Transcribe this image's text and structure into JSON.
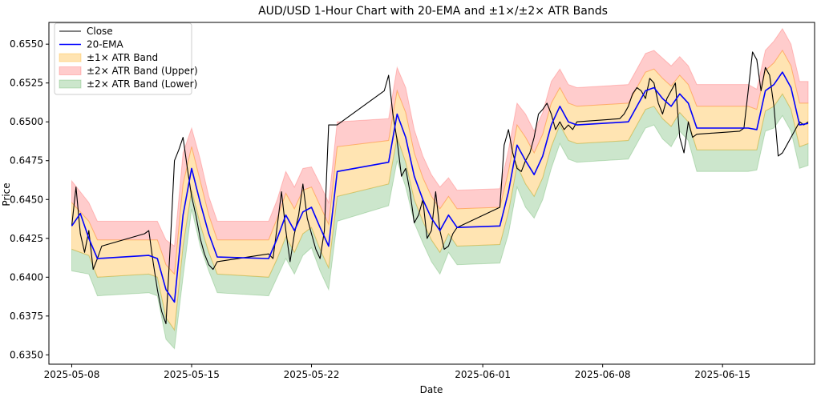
{
  "chart_data": {
    "type": "line",
    "title": "AUD/USD 1-Hour Chart with 20-EMA and ±1×/±2× ATR Bands",
    "xlabel": "Date",
    "ylabel": "Price",
    "x_ticks": [
      "2025-05-08",
      "2025-05-15",
      "2025-05-22",
      "2025-06-01",
      "2025-06-08",
      "2025-06-15"
    ],
    "y_ticks": [
      "0.6350",
      "0.6375",
      "0.6400",
      "0.6425",
      "0.6450",
      "0.6475",
      "0.6500",
      "0.6525",
      "0.6550"
    ],
    "xlim": [
      "2025-05-06T16:00",
      "2025-06-20T09:00"
    ],
    "ylim": [
      0.6344,
      0.6564
    ],
    "legend_placement": "upper-left",
    "grid": false,
    "legend": [
      {
        "label": "Close",
        "kind": "line",
        "color": "#000000"
      },
      {
        "label": "20-EMA",
        "kind": "line",
        "color": "#0000ff"
      },
      {
        "label": "±1× ATR Band",
        "kind": "patch",
        "color": "#ffa500"
      },
      {
        "label": "±2× ATR Band (Upper)",
        "kind": "patch",
        "color": "#ff0000"
      },
      {
        "label": "±2× ATR Band (Lower)",
        "kind": "patch",
        "color": "#008000"
      }
    ],
    "series": [
      {
        "name": "Close",
        "x": [
          "2025-05-08T00:00",
          "2025-05-08T06:00",
          "2025-05-08T12:00",
          "2025-05-08T18:00",
          "2025-05-09T00:00",
          "2025-05-09T06:00",
          "2025-05-09T12:00",
          "2025-05-09T18:00",
          "2025-05-12T06:00",
          "2025-05-12T12:00",
          "2025-05-12T18:00",
          "2025-05-13T00:00",
          "2025-05-13T06:00",
          "2025-05-13T12:00",
          "2025-05-13T18:00",
          "2025-05-14T00:00",
          "2025-05-14T06:00",
          "2025-05-14T12:00",
          "2025-05-14T18:00",
          "2025-05-15T00:00",
          "2025-05-15T06:00",
          "2025-05-15T12:00",
          "2025-05-15T18:00",
          "2025-05-16T00:00",
          "2025-05-16T06:00",
          "2025-05-16T12:00",
          "2025-05-19T12:00",
          "2025-05-19T18:00",
          "2025-05-20T00:00",
          "2025-05-20T06:00",
          "2025-05-20T12:00",
          "2025-05-20T18:00",
          "2025-05-21T00:00",
          "2025-05-21T06:00",
          "2025-05-21T12:00",
          "2025-05-21T18:00",
          "2025-05-22T00:00",
          "2025-05-22T06:00",
          "2025-05-22T12:00",
          "2025-05-22T18:00",
          "2025-05-23T00:00",
          "2025-05-23T06:00",
          "2025-05-23T12:00",
          "2025-05-23T18:00",
          "2025-05-26T06:00",
          "2025-05-26T12:00",
          "2025-05-26T18:00",
          "2025-05-27T00:00",
          "2025-05-27T06:00",
          "2025-05-27T12:00",
          "2025-05-27T18:00",
          "2025-05-28T00:00",
          "2025-05-28T06:00",
          "2025-05-28T12:00",
          "2025-05-28T18:00",
          "2025-05-29T00:00",
          "2025-05-29T06:00",
          "2025-05-29T12:00",
          "2025-05-29T18:00",
          "2025-05-30T00:00",
          "2025-05-30T06:00",
          "2025-05-30T12:00",
          "2025-06-02T00:00",
          "2025-06-02T06:00",
          "2025-06-02T12:00",
          "2025-06-02T18:00",
          "2025-06-03T00:00",
          "2025-06-03T06:00",
          "2025-06-03T12:00",
          "2025-06-03T18:00",
          "2025-06-04T00:00",
          "2025-06-04T06:00",
          "2025-06-04T12:00",
          "2025-06-04T18:00",
          "2025-06-05T00:00",
          "2025-06-05T06:00",
          "2025-06-05T12:00",
          "2025-06-05T18:00",
          "2025-06-06T00:00",
          "2025-06-06T06:00",
          "2025-06-06T12:00",
          "2025-06-09T00:00",
          "2025-06-09T06:00",
          "2025-06-09T12:00",
          "2025-06-09T18:00",
          "2025-06-10T00:00",
          "2025-06-10T06:00",
          "2025-06-10T12:00",
          "2025-06-10T18:00",
          "2025-06-11T00:00",
          "2025-06-11T06:00",
          "2025-06-11T12:00",
          "2025-06-11T18:00",
          "2025-06-12T00:00",
          "2025-06-12T06:00",
          "2025-06-12T12:00",
          "2025-06-12T18:00",
          "2025-06-13T00:00",
          "2025-06-13T06:00",
          "2025-06-13T12:00",
          "2025-06-16T00:00",
          "2025-06-16T06:00",
          "2025-06-16T12:00",
          "2025-06-16T18:00",
          "2025-06-17T00:00",
          "2025-06-17T06:00",
          "2025-06-17T12:00",
          "2025-06-17T18:00",
          "2025-06-18T00:00",
          "2025-06-18T06:00",
          "2025-06-18T12:00",
          "2025-06-18T18:00",
          "2025-06-19T00:00",
          "2025-06-19T06:00",
          "2025-06-19T12:00",
          "2025-06-19T18:00",
          "2025-06-20T00:00"
        ],
        "values": [
          0.6433,
          0.6458,
          0.6428,
          0.6416,
          0.643,
          0.6405,
          0.6412,
          0.642,
          0.6428,
          0.643,
          0.641,
          0.6392,
          0.6378,
          0.637,
          0.642,
          0.6475,
          0.6482,
          0.649,
          0.647,
          0.6452,
          0.644,
          0.6425,
          0.6415,
          0.6408,
          0.6405,
          0.641,
          0.6415,
          0.6412,
          0.6433,
          0.6455,
          0.643,
          0.641,
          0.6428,
          0.644,
          0.646,
          0.6438,
          0.6428,
          0.6418,
          0.6412,
          0.643,
          0.6498,
          0.6498,
          0.6498,
          0.65,
          0.652,
          0.653,
          0.6505,
          0.6488,
          0.6465,
          0.647,
          0.6455,
          0.6435,
          0.644,
          0.645,
          0.6425,
          0.643,
          0.6455,
          0.643,
          0.6418,
          0.642,
          0.6428,
          0.6432,
          0.6445,
          0.6485,
          0.6495,
          0.648,
          0.647,
          0.6468,
          0.6475,
          0.648,
          0.649,
          0.6505,
          0.6508,
          0.6512,
          0.6505,
          0.6495,
          0.65,
          0.6495,
          0.6498,
          0.6495,
          0.65,
          0.6502,
          0.6505,
          0.651,
          0.6518,
          0.6522,
          0.652,
          0.6515,
          0.6528,
          0.6525,
          0.6512,
          0.6505,
          0.6515,
          0.652,
          0.6525,
          0.649,
          0.648,
          0.65,
          0.649,
          0.6492,
          0.6494,
          0.6496,
          0.652,
          0.6545,
          0.654,
          0.652,
          0.6535,
          0.653,
          0.651,
          0.6478,
          0.648,
          0.6485,
          0.649,
          0.6495,
          0.65,
          0.6498,
          0.65
        ]
      },
      {
        "name": "20-EMA",
        "x": [
          "2025-05-08T00:00",
          "2025-05-08T12:00",
          "2025-05-09T00:00",
          "2025-05-09T12:00",
          "2025-05-12T12:00",
          "2025-05-13T00:00",
          "2025-05-13T12:00",
          "2025-05-14T00:00",
          "2025-05-14T12:00",
          "2025-05-15T00:00",
          "2025-05-15T12:00",
          "2025-05-16T00:00",
          "2025-05-16T12:00",
          "2025-05-19T12:00",
          "2025-05-20T00:00",
          "2025-05-20T12:00",
          "2025-05-21T00:00",
          "2025-05-21T12:00",
          "2025-05-22T00:00",
          "2025-05-22T12:00",
          "2025-05-23T00:00",
          "2025-05-23T12:00",
          "2025-05-26T12:00",
          "2025-05-27T00:00",
          "2025-05-27T12:00",
          "2025-05-28T00:00",
          "2025-05-28T12:00",
          "2025-05-29T00:00",
          "2025-05-29T12:00",
          "2025-05-30T00:00",
          "2025-05-30T12:00",
          "2025-06-02T00:00",
          "2025-06-02T12:00",
          "2025-06-03T00:00",
          "2025-06-03T12:00",
          "2025-06-04T00:00",
          "2025-06-04T12:00",
          "2025-06-05T00:00",
          "2025-06-05T12:00",
          "2025-06-06T00:00",
          "2025-06-06T12:00",
          "2025-06-09T12:00",
          "2025-06-10T00:00",
          "2025-06-10T12:00",
          "2025-06-11T00:00",
          "2025-06-11T12:00",
          "2025-06-12T00:00",
          "2025-06-12T12:00",
          "2025-06-13T00:00",
          "2025-06-13T12:00",
          "2025-06-16T12:00",
          "2025-06-17T00:00",
          "2025-06-17T12:00",
          "2025-06-18T00:00",
          "2025-06-18T12:00",
          "2025-06-19T00:00",
          "2025-06-19T12:00",
          "2025-06-20T00:00"
        ],
        "values": [
          0.6433,
          0.6441,
          0.6425,
          0.6412,
          0.6414,
          0.6412,
          0.6392,
          0.6384,
          0.644,
          0.647,
          0.6448,
          0.6428,
          0.6413,
          0.6412,
          0.6425,
          0.644,
          0.643,
          0.6442,
          0.6445,
          0.6432,
          0.642,
          0.6468,
          0.6474,
          0.6505,
          0.649,
          0.6465,
          0.645,
          0.6438,
          0.643,
          0.644,
          0.6432,
          0.6433,
          0.6455,
          0.6485,
          0.6475,
          0.6466,
          0.6478,
          0.6498,
          0.651,
          0.65,
          0.6498,
          0.65,
          0.651,
          0.652,
          0.6522,
          0.6515,
          0.651,
          0.6518,
          0.6512,
          0.6496,
          0.6496,
          0.6495,
          0.652,
          0.6524,
          0.6532,
          0.6522,
          0.6498,
          0.6499
        ]
      }
    ],
    "bands": [
      {
        "name": "±1× ATR Band",
        "color": "#ffa500",
        "x": [
          "2025-05-08T00:00",
          "2025-05-09T00:00",
          "2025-05-09T12:00",
          "2025-05-12T12:00",
          "2025-05-13T00:00",
          "2025-05-13T12:00",
          "2025-05-14T00:00",
          "2025-05-14T12:00",
          "2025-05-15T00:00",
          "2025-05-15T12:00",
          "2025-05-16T00:00",
          "2025-05-16T12:00",
          "2025-05-19T12:00",
          "2025-05-20T00:00",
          "2025-05-20T12:00",
          "2025-05-21T00:00",
          "2025-05-21T12:00",
          "2025-05-22T00:00",
          "2025-05-22T12:00",
          "2025-05-23T00:00",
          "2025-05-23T12:00",
          "2025-05-26T12:00",
          "2025-05-27T00:00",
          "2025-05-27T12:00",
          "2025-05-28T00:00",
          "2025-05-28T12:00",
          "2025-05-29T00:00",
          "2025-05-29T12:00",
          "2025-05-30T00:00",
          "2025-05-30T12:00",
          "2025-06-02T00:00",
          "2025-06-02T12:00",
          "2025-06-03T00:00",
          "2025-06-03T12:00",
          "2025-06-04T00:00",
          "2025-06-04T12:00",
          "2025-06-05T00:00",
          "2025-06-05T12:00",
          "2025-06-06T00:00",
          "2025-06-06T12:00",
          "2025-06-09T12:00",
          "2025-06-10T00:00",
          "2025-06-10T12:00",
          "2025-06-11T00:00",
          "2025-06-11T12:00",
          "2025-06-12T00:00",
          "2025-06-12T12:00",
          "2025-06-13T00:00",
          "2025-06-13T12:00",
          "2025-06-16T12:00",
          "2025-06-17T00:00",
          "2025-06-17T12:00",
          "2025-06-18T00:00",
          "2025-06-18T12:00",
          "2025-06-19T00:00",
          "2025-06-19T12:00",
          "2025-06-20T00:00"
        ],
        "upper": [
          0.6448,
          0.6436,
          0.6424,
          0.6424,
          0.6424,
          0.6408,
          0.6402,
          0.646,
          0.6484,
          0.6462,
          0.644,
          0.6424,
          0.6424,
          0.6438,
          0.6454,
          0.6444,
          0.6456,
          0.6458,
          0.6446,
          0.6434,
          0.6484,
          0.6488,
          0.652,
          0.6506,
          0.648,
          0.6464,
          0.6452,
          0.6444,
          0.6452,
          0.6444,
          0.6445,
          0.6468,
          0.6498,
          0.649,
          0.648,
          0.6492,
          0.6512,
          0.6522,
          0.6512,
          0.651,
          0.6512,
          0.6522,
          0.6532,
          0.6534,
          0.6528,
          0.6523,
          0.653,
          0.6524,
          0.651,
          0.651,
          0.6508,
          0.6533,
          0.6538,
          0.6546,
          0.6536,
          0.6512,
          0.6512
        ],
        "lower": [
          0.6418,
          0.6414,
          0.64,
          0.6402,
          0.64,
          0.6374,
          0.6366,
          0.642,
          0.6456,
          0.6434,
          0.6416,
          0.6402,
          0.64,
          0.6412,
          0.6426,
          0.6416,
          0.6428,
          0.6432,
          0.6418,
          0.6406,
          0.6452,
          0.646,
          0.649,
          0.6474,
          0.645,
          0.6436,
          0.6424,
          0.6416,
          0.6428,
          0.642,
          0.6421,
          0.6442,
          0.6472,
          0.646,
          0.6452,
          0.6464,
          0.6484,
          0.6498,
          0.6488,
          0.6486,
          0.6488,
          0.6498,
          0.6508,
          0.651,
          0.6502,
          0.6497,
          0.6506,
          0.65,
          0.6482,
          0.6482,
          0.6482,
          0.6507,
          0.651,
          0.6518,
          0.6508,
          0.6484,
          0.6486
        ]
      },
      {
        "name": "±2× ATR Band (Upper)",
        "color": "#ff0000",
        "x": [
          "2025-05-08T00:00",
          "2025-05-09T00:00",
          "2025-05-09T12:00",
          "2025-05-12T12:00",
          "2025-05-13T00:00",
          "2025-05-13T12:00",
          "2025-05-14T00:00",
          "2025-05-14T12:00",
          "2025-05-15T00:00",
          "2025-05-15T12:00",
          "2025-05-16T00:00",
          "2025-05-16T12:00",
          "2025-05-19T12:00",
          "2025-05-20T00:00",
          "2025-05-20T12:00",
          "2025-05-21T00:00",
          "2025-05-21T12:00",
          "2025-05-22T00:00",
          "2025-05-22T12:00",
          "2025-05-23T00:00",
          "2025-05-23T12:00",
          "2025-05-26T12:00",
          "2025-05-27T00:00",
          "2025-05-27T12:00",
          "2025-05-28T00:00",
          "2025-05-28T12:00",
          "2025-05-29T00:00",
          "2025-05-29T12:00",
          "2025-05-30T00:00",
          "2025-05-30T12:00",
          "2025-06-02T00:00",
          "2025-06-02T12:00",
          "2025-06-03T00:00",
          "2025-06-03T12:00",
          "2025-06-04T00:00",
          "2025-06-04T12:00",
          "2025-06-05T00:00",
          "2025-06-05T12:00",
          "2025-06-06T00:00",
          "2025-06-06T12:00",
          "2025-06-09T12:00",
          "2025-06-10T00:00",
          "2025-06-10T12:00",
          "2025-06-11T00:00",
          "2025-06-11T12:00",
          "2025-06-12T00:00",
          "2025-06-12T12:00",
          "2025-06-13T00:00",
          "2025-06-13T12:00",
          "2025-06-16T12:00",
          "2025-06-17T00:00",
          "2025-06-17T12:00",
          "2025-06-18T00:00",
          "2025-06-18T12:00",
          "2025-06-19T00:00",
          "2025-06-19T12:00",
          "2025-06-20T00:00"
        ],
        "upper": [
          0.6462,
          0.6448,
          0.6436,
          0.6436,
          0.6436,
          0.6424,
          0.642,
          0.648,
          0.6496,
          0.6476,
          0.6452,
          0.6436,
          0.6436,
          0.645,
          0.6468,
          0.6458,
          0.647,
          0.6471,
          0.646,
          0.6448,
          0.65,
          0.6502,
          0.6535,
          0.6522,
          0.6495,
          0.6478,
          0.6466,
          0.6458,
          0.6464,
          0.6456,
          0.6457,
          0.6482,
          0.6512,
          0.6505,
          0.6494,
          0.6506,
          0.6526,
          0.6534,
          0.6524,
          0.6522,
          0.6524,
          0.6534,
          0.6544,
          0.6546,
          0.6541,
          0.6536,
          0.6542,
          0.6536,
          0.6524,
          0.6524,
          0.6521,
          0.6546,
          0.6552,
          0.656,
          0.655,
          0.6526,
          0.6526
        ]
      },
      {
        "name": "±2× ATR Band (Lower)",
        "color": "#008000",
        "x": [
          "2025-05-08T00:00",
          "2025-05-09T00:00",
          "2025-05-09T12:00",
          "2025-05-12T12:00",
          "2025-05-13T00:00",
          "2025-05-13T12:00",
          "2025-05-14T00:00",
          "2025-05-14T12:00",
          "2025-05-15T00:00",
          "2025-05-15T12:00",
          "2025-05-16T00:00",
          "2025-05-16T12:00",
          "2025-05-19T12:00",
          "2025-05-20T00:00",
          "2025-05-20T12:00",
          "2025-05-21T00:00",
          "2025-05-21T12:00",
          "2025-05-22T00:00",
          "2025-05-22T12:00",
          "2025-05-23T00:00",
          "2025-05-23T12:00",
          "2025-05-26T12:00",
          "2025-05-27T00:00",
          "2025-05-27T12:00",
          "2025-05-28T00:00",
          "2025-05-28T12:00",
          "2025-05-29T00:00",
          "2025-05-29T12:00",
          "2025-05-30T00:00",
          "2025-05-30T12:00",
          "2025-06-02T00:00",
          "2025-06-02T12:00",
          "2025-06-03T00:00",
          "2025-06-03T12:00",
          "2025-06-04T00:00",
          "2025-06-04T12:00",
          "2025-06-05T00:00",
          "2025-06-05T12:00",
          "2025-06-06T00:00",
          "2025-06-06T12:00",
          "2025-06-09T12:00",
          "2025-06-10T00:00",
          "2025-06-10T12:00",
          "2025-06-11T00:00",
          "2025-06-11T12:00",
          "2025-06-12T00:00",
          "2025-06-12T12:00",
          "2025-06-13T00:00",
          "2025-06-13T12:00",
          "2025-06-16T12:00",
          "2025-06-17T00:00",
          "2025-06-17T12:00",
          "2025-06-18T00:00",
          "2025-06-18T12:00",
          "2025-06-19T00:00",
          "2025-06-19T12:00",
          "2025-06-20T00:00"
        ],
        "lower": [
          0.6404,
          0.6402,
          0.6388,
          0.639,
          0.6388,
          0.636,
          0.6354,
          0.64,
          0.6444,
          0.642,
          0.6404,
          0.639,
          0.6388,
          0.64,
          0.6412,
          0.6402,
          0.6414,
          0.6419,
          0.6404,
          0.6392,
          0.6436,
          0.6446,
          0.6475,
          0.6458,
          0.6435,
          0.6422,
          0.641,
          0.6402,
          0.6416,
          0.6408,
          0.6409,
          0.6428,
          0.6458,
          0.6445,
          0.6438,
          0.645,
          0.647,
          0.6486,
          0.6476,
          0.6474,
          0.6476,
          0.6486,
          0.6496,
          0.6498,
          0.6489,
          0.6484,
          0.6494,
          0.6488,
          0.6468,
          0.6468,
          0.6469,
          0.6494,
          0.6496,
          0.6504,
          0.6494,
          0.647,
          0.6472
        ]
      }
    ]
  },
  "colors": {
    "close": "#000000",
    "ema": "#0000ff",
    "band1": "#ffa500",
    "band2_upper": "#ff0000",
    "band2_lower": "#008000"
  }
}
